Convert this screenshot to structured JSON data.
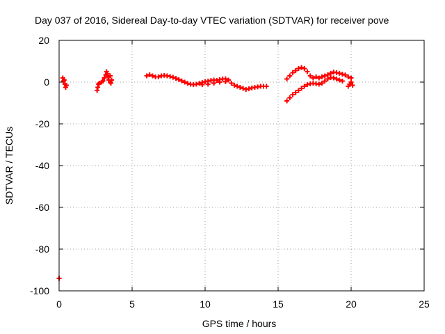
{
  "chart_data": {
    "type": "scatter",
    "title": "Day 037 of 2016, Sidereal Day-to-day VTEC variation (SDTVAR) for receiver pove",
    "xlabel": "GPS time / hours",
    "ylabel": "SDTVAR / TECUs",
    "xlim": [
      0,
      25
    ],
    "ylim": [
      -100,
      20
    ],
    "xticks": [
      0,
      5,
      10,
      15,
      20,
      25
    ],
    "yticks": [
      -100,
      -80,
      -60,
      -40,
      -20,
      0,
      20
    ],
    "grid": true,
    "marker": "+",
    "color": "#ff0000",
    "series": [
      {
        "name": "SDTVAR",
        "points": [
          [
            0.0,
            -94.0
          ],
          [
            0.25,
            2.0
          ],
          [
            0.3,
            0.5
          ],
          [
            0.35,
            1.0
          ],
          [
            0.4,
            -1.0
          ],
          [
            0.45,
            -2.5
          ],
          [
            0.5,
            -1.5
          ],
          [
            2.6,
            -4.0
          ],
          [
            2.65,
            -2.5
          ],
          [
            2.7,
            -1.0
          ],
          [
            2.75,
            -0.5
          ],
          [
            2.9,
            0.0
          ],
          [
            3.0,
            0.5
          ],
          [
            3.1,
            2.0
          ],
          [
            3.2,
            3.5
          ],
          [
            3.25,
            5.0
          ],
          [
            3.3,
            4.0
          ],
          [
            3.35,
            2.5
          ],
          [
            3.4,
            1.0
          ],
          [
            3.5,
            0.0
          ],
          [
            3.55,
            -0.5
          ],
          [
            3.6,
            1.0
          ],
          [
            3.5,
            3.0
          ],
          [
            6.0,
            3.0
          ],
          [
            6.2,
            3.5
          ],
          [
            6.4,
            3.0
          ],
          [
            6.6,
            2.5
          ],
          [
            6.8,
            2.5
          ],
          [
            7.0,
            3.0
          ],
          [
            7.2,
            3.2
          ],
          [
            7.4,
            3.0
          ],
          [
            7.6,
            2.7
          ],
          [
            7.8,
            2.3
          ],
          [
            8.0,
            1.8
          ],
          [
            8.2,
            1.2
          ],
          [
            8.4,
            0.6
          ],
          [
            8.6,
            0.0
          ],
          [
            8.8,
            -0.6
          ],
          [
            9.0,
            -1.0
          ],
          [
            9.2,
            -1.2
          ],
          [
            9.4,
            -1.0
          ],
          [
            9.6,
            -0.6
          ],
          [
            9.8,
            -0.2
          ],
          [
            10.0,
            0.2
          ],
          [
            10.2,
            0.5
          ],
          [
            10.4,
            0.8
          ],
          [
            10.6,
            1.0
          ],
          [
            10.8,
            0.8
          ],
          [
            11.0,
            1.2
          ],
          [
            11.2,
            1.5
          ],
          [
            11.4,
            1.6
          ],
          [
            11.6,
            1.0
          ],
          [
            11.8,
            -0.5
          ],
          [
            12.0,
            -1.5
          ],
          [
            12.2,
            -2.0
          ],
          [
            12.4,
            -2.5
          ],
          [
            12.6,
            -3.0
          ],
          [
            12.8,
            -3.5
          ],
          [
            13.0,
            -3.2
          ],
          [
            13.2,
            -2.8
          ],
          [
            13.4,
            -2.5
          ],
          [
            13.6,
            -2.3
          ],
          [
            13.8,
            -2.0
          ],
          [
            14.0,
            -2.0
          ],
          [
            14.2,
            -2.0
          ],
          [
            9.8,
            -1.2
          ],
          [
            10.2,
            -1.0
          ],
          [
            10.6,
            -0.5
          ],
          [
            11.0,
            0.0
          ],
          [
            11.4,
            0.2
          ],
          [
            15.6,
            -9.0
          ],
          [
            15.8,
            -7.5
          ],
          [
            16.0,
            -6.0
          ],
          [
            16.2,
            -5.0
          ],
          [
            16.4,
            -4.0
          ],
          [
            16.6,
            -3.0
          ],
          [
            16.8,
            -2.0
          ],
          [
            17.0,
            -1.2
          ],
          [
            17.2,
            -0.8
          ],
          [
            17.4,
            -0.6
          ],
          [
            17.6,
            -0.8
          ],
          [
            17.8,
            -1.0
          ],
          [
            18.0,
            -0.5
          ],
          [
            18.2,
            0.5
          ],
          [
            18.4,
            1.5
          ],
          [
            18.6,
            2.2
          ],
          [
            18.8,
            2.0
          ],
          [
            19.0,
            1.5
          ],
          [
            19.2,
            1.0
          ],
          [
            19.4,
            0.5
          ],
          [
            15.6,
            1.5
          ],
          [
            15.8,
            3.0
          ],
          [
            16.0,
            4.5
          ],
          [
            16.2,
            5.5
          ],
          [
            16.4,
            6.5
          ],
          [
            16.6,
            7.0
          ],
          [
            16.8,
            6.5
          ],
          [
            17.0,
            5.0
          ],
          [
            17.2,
            3.0
          ],
          [
            17.4,
            2.0
          ],
          [
            17.6,
            2.5
          ],
          [
            17.8,
            2.0
          ],
          [
            18.0,
            2.5
          ],
          [
            18.2,
            3.0
          ],
          [
            18.4,
            3.5
          ],
          [
            18.6,
            4.2
          ],
          [
            18.8,
            4.8
          ],
          [
            19.0,
            4.5
          ],
          [
            19.2,
            4.2
          ],
          [
            19.4,
            3.8
          ],
          [
            19.6,
            3.4
          ],
          [
            19.8,
            2.5
          ],
          [
            20.0,
            2.0
          ],
          [
            19.8,
            -2.0
          ],
          [
            19.9,
            -1.0
          ],
          [
            20.0,
            0.0
          ],
          [
            20.1,
            -1.5
          ]
        ]
      }
    ]
  }
}
